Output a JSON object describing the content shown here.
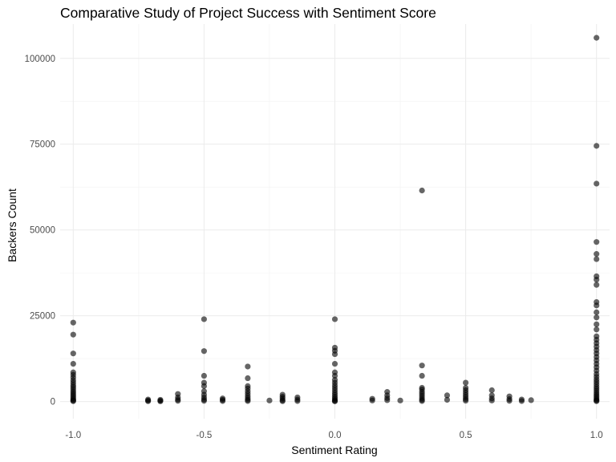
{
  "chart_data": {
    "type": "scatter",
    "title": "Comparative Study of Project Success with Sentiment Score",
    "xlabel": "Sentiment Rating",
    "ylabel": "Backers Count",
    "xlim": [
      -1.05,
      1.05
    ],
    "ylim": [
      -5000,
      110000
    ],
    "x_ticks": [
      -1.0,
      -0.5,
      0.0,
      0.5,
      1.0
    ],
    "x_tick_labels": [
      "-1.0",
      "-0.5",
      "0.0",
      "0.5",
      "1.0"
    ],
    "y_ticks": [
      0,
      25000,
      50000,
      75000,
      100000
    ],
    "y_tick_labels": [
      "0",
      "25000",
      "50000",
      "75000",
      "100000"
    ],
    "grid": true,
    "point_color": "#000000",
    "point_opacity": 0.6,
    "series": [
      {
        "points": [
          [
            -1.0,
            23000
          ],
          [
            -1.0,
            19500
          ],
          [
            -1.0,
            14000
          ],
          [
            -1.0,
            11000
          ],
          [
            -1.0,
            8500
          ],
          [
            -1.0,
            7800
          ],
          [
            -1.0,
            7000
          ],
          [
            -1.0,
            6200
          ],
          [
            -1.0,
            5500
          ],
          [
            -1.0,
            4800
          ],
          [
            -1.0,
            4200
          ],
          [
            -1.0,
            3600
          ],
          [
            -1.0,
            3000
          ],
          [
            -1.0,
            2500
          ],
          [
            -1.0,
            2000
          ],
          [
            -1.0,
            1500
          ],
          [
            -1.0,
            1000
          ],
          [
            -1.0,
            600
          ],
          [
            -1.0,
            300
          ],
          [
            -1.0,
            100
          ],
          [
            -0.714,
            600
          ],
          [
            -0.714,
            300
          ],
          [
            -0.714,
            100
          ],
          [
            -0.667,
            500
          ],
          [
            -0.667,
            250
          ],
          [
            -0.667,
            80
          ],
          [
            -0.6,
            2200
          ],
          [
            -0.6,
            1200
          ],
          [
            -0.6,
            600
          ],
          [
            -0.6,
            200
          ],
          [
            -0.5,
            24000
          ],
          [
            -0.5,
            14700
          ],
          [
            -0.5,
            7500
          ],
          [
            -0.5,
            5500
          ],
          [
            -0.5,
            4500
          ],
          [
            -0.5,
            3000
          ],
          [
            -0.5,
            2000
          ],
          [
            -0.5,
            1200
          ],
          [
            -0.5,
            600
          ],
          [
            -0.5,
            200
          ],
          [
            -0.429,
            900
          ],
          [
            -0.429,
            500
          ],
          [
            -0.429,
            150
          ],
          [
            -0.333,
            10200
          ],
          [
            -0.333,
            6800
          ],
          [
            -0.333,
            4500
          ],
          [
            -0.333,
            3800
          ],
          [
            -0.333,
            3000
          ],
          [
            -0.333,
            2300
          ],
          [
            -0.333,
            1600
          ],
          [
            -0.333,
            1000
          ],
          [
            -0.333,
            500
          ],
          [
            -0.333,
            150
          ],
          [
            -0.25,
            300
          ],
          [
            -0.2,
            2000
          ],
          [
            -0.2,
            1400
          ],
          [
            -0.2,
            900
          ],
          [
            -0.2,
            400
          ],
          [
            -0.2,
            100
          ],
          [
            -0.143,
            1200
          ],
          [
            -0.143,
            600
          ],
          [
            -0.143,
            150
          ],
          [
            0.0,
            24000
          ],
          [
            0.0,
            15700
          ],
          [
            0.0,
            14800
          ],
          [
            0.0,
            13800
          ],
          [
            0.0,
            11000
          ],
          [
            0.0,
            8500
          ],
          [
            0.0,
            7500
          ],
          [
            0.0,
            6300
          ],
          [
            0.0,
            5500
          ],
          [
            0.0,
            4700
          ],
          [
            0.0,
            4000
          ],
          [
            0.0,
            3300
          ],
          [
            0.0,
            2600
          ],
          [
            0.0,
            2000
          ],
          [
            0.0,
            1400
          ],
          [
            0.0,
            900
          ],
          [
            0.0,
            500
          ],
          [
            0.0,
            200
          ],
          [
            0.0,
            50
          ],
          [
            0.143,
            800
          ],
          [
            0.143,
            300
          ],
          [
            0.2,
            2800
          ],
          [
            0.2,
            1800
          ],
          [
            0.2,
            1000
          ],
          [
            0.2,
            400
          ],
          [
            0.25,
            300
          ],
          [
            0.333,
            61500
          ],
          [
            0.333,
            10500
          ],
          [
            0.333,
            7500
          ],
          [
            0.333,
            4000
          ],
          [
            0.333,
            3500
          ],
          [
            0.333,
            2800
          ],
          [
            0.333,
            2200
          ],
          [
            0.333,
            1600
          ],
          [
            0.333,
            1000
          ],
          [
            0.333,
            500
          ],
          [
            0.333,
            150
          ],
          [
            0.429,
            1800
          ],
          [
            0.429,
            500
          ],
          [
            0.5,
            5500
          ],
          [
            0.5,
            4000
          ],
          [
            0.5,
            3300
          ],
          [
            0.5,
            2600
          ],
          [
            0.5,
            1900
          ],
          [
            0.5,
            1300
          ],
          [
            0.5,
            700
          ],
          [
            0.5,
            250
          ],
          [
            0.6,
            3300
          ],
          [
            0.6,
            1800
          ],
          [
            0.6,
            900
          ],
          [
            0.6,
            300
          ],
          [
            0.667,
            1500
          ],
          [
            0.667,
            700
          ],
          [
            0.667,
            200
          ],
          [
            0.714,
            600
          ],
          [
            0.714,
            150
          ],
          [
            0.75,
            400
          ],
          [
            1.0,
            106000
          ],
          [
            1.0,
            74500
          ],
          [
            1.0,
            63500
          ],
          [
            1.0,
            46500
          ],
          [
            1.0,
            43000
          ],
          [
            1.0,
            41500
          ],
          [
            1.0,
            36500
          ],
          [
            1.0,
            35500
          ],
          [
            1.0,
            34000
          ],
          [
            1.0,
            29000
          ],
          [
            1.0,
            28000
          ],
          [
            1.0,
            26000
          ],
          [
            1.0,
            24500
          ],
          [
            1.0,
            22500
          ],
          [
            1.0,
            21000
          ],
          [
            1.0,
            19000
          ],
          [
            1.0,
            18000
          ],
          [
            1.0,
            17000
          ],
          [
            1.0,
            16000
          ],
          [
            1.0,
            15000
          ],
          [
            1.0,
            14000
          ],
          [
            1.0,
            13000
          ],
          [
            1.0,
            12000
          ],
          [
            1.0,
            11000
          ],
          [
            1.0,
            10000
          ],
          [
            1.0,
            9000
          ],
          [
            1.0,
            8000
          ],
          [
            1.0,
            7200
          ],
          [
            1.0,
            6400
          ],
          [
            1.0,
            5700
          ],
          [
            1.0,
            5000
          ],
          [
            1.0,
            4300
          ],
          [
            1.0,
            3700
          ],
          [
            1.0,
            3100
          ],
          [
            1.0,
            2500
          ],
          [
            1.0,
            2000
          ],
          [
            1.0,
            1500
          ],
          [
            1.0,
            1000
          ],
          [
            1.0,
            600
          ],
          [
            1.0,
            300
          ],
          [
            1.0,
            100
          ]
        ]
      }
    ]
  }
}
